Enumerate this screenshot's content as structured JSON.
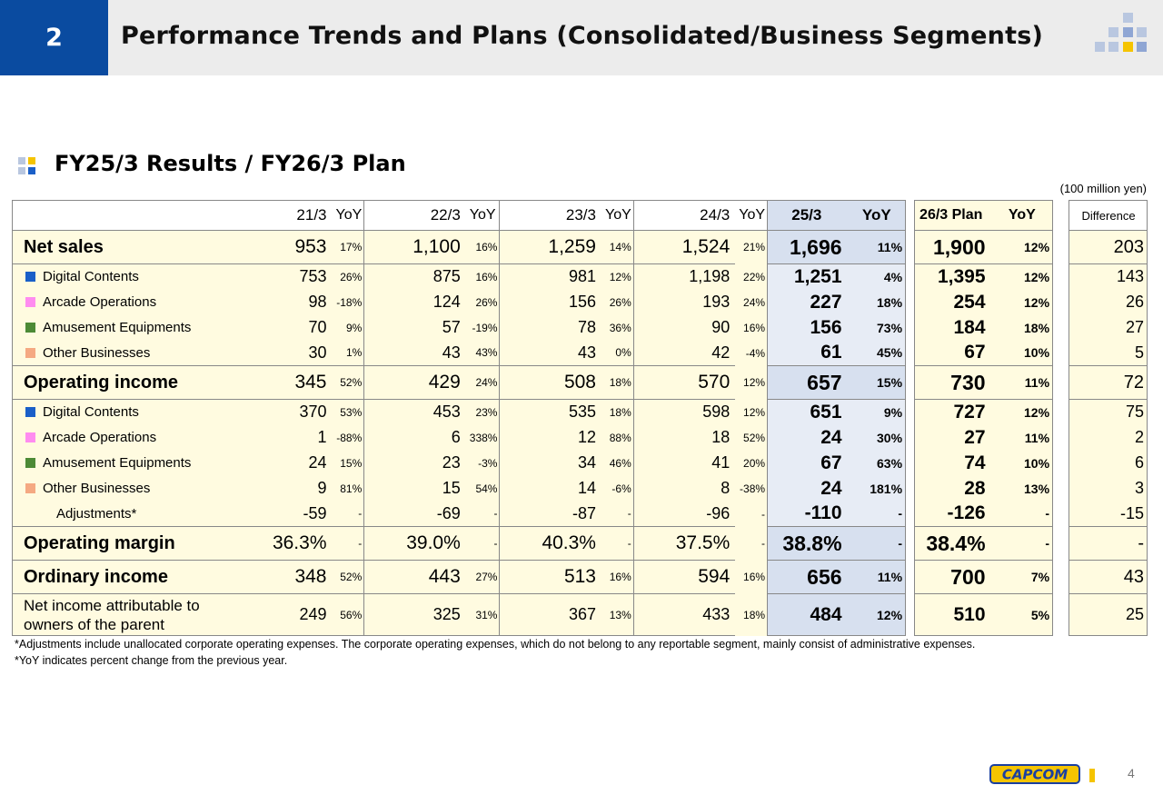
{
  "header": {
    "page_badge": "2",
    "title": "Performance Trends and Plans (Consolidated/Business Segments)"
  },
  "section": {
    "title": "FY25/3 Results / FY26/3 Plan",
    "unit": "(100 million yen)"
  },
  "table": {
    "columns": {
      "c1": "21/3",
      "c2": "22/3",
      "c3": "23/3",
      "c4": "24/3",
      "c5": "25/3",
      "c6": "26/3 Plan",
      "yoy": "YoY",
      "diff": "Difference"
    },
    "rows": [
      {
        "label": "Net sales",
        "v": [
          "953",
          "17%",
          "1,100",
          "16%",
          "1,259",
          "14%",
          "1,524",
          "21%",
          "1,696",
          "11%",
          "1,900",
          "12%",
          "203"
        ]
      },
      {
        "label": "Digital Contents",
        "v": [
          "753",
          "26%",
          "875",
          "16%",
          "981",
          "12%",
          "1,198",
          "22%",
          "1,251",
          "4%",
          "1,395",
          "12%",
          "143"
        ]
      },
      {
        "label": "Arcade Operations",
        "v": [
          "98",
          "-18%",
          "124",
          "26%",
          "156",
          "26%",
          "193",
          "24%",
          "227",
          "18%",
          "254",
          "12%",
          "26"
        ]
      },
      {
        "label": "Amusement Equipments",
        "v": [
          "70",
          "9%",
          "57",
          "-19%",
          "78",
          "36%",
          "90",
          "16%",
          "156",
          "73%",
          "184",
          "18%",
          "27"
        ]
      },
      {
        "label": "Other Businesses",
        "v": [
          "30",
          "1%",
          "43",
          "43%",
          "43",
          "0%",
          "42",
          "-4%",
          "61",
          "45%",
          "67",
          "10%",
          "5"
        ]
      },
      {
        "label": "Operating income",
        "v": [
          "345",
          "52%",
          "429",
          "24%",
          "508",
          "18%",
          "570",
          "12%",
          "657",
          "15%",
          "730",
          "11%",
          "72"
        ]
      },
      {
        "label": "Digital Contents",
        "v": [
          "370",
          "53%",
          "453",
          "23%",
          "535",
          "18%",
          "598",
          "12%",
          "651",
          "9%",
          "727",
          "12%",
          "75"
        ]
      },
      {
        "label": "Arcade Operations",
        "v": [
          "1",
          "-88%",
          "6",
          "338%",
          "12",
          "88%",
          "18",
          "52%",
          "24",
          "30%",
          "27",
          "11%",
          "2"
        ]
      },
      {
        "label": "Amusement Equipments",
        "v": [
          "24",
          "15%",
          "23",
          "-3%",
          "34",
          "46%",
          "41",
          "20%",
          "67",
          "63%",
          "74",
          "10%",
          "6"
        ]
      },
      {
        "label": "Other Businesses",
        "v": [
          "9",
          "81%",
          "15",
          "54%",
          "14",
          "-6%",
          "8",
          "-38%",
          "24",
          "181%",
          "28",
          "13%",
          "3"
        ]
      },
      {
        "label": "Adjustments*",
        "v": [
          "-59",
          "-",
          "-69",
          "-",
          "-87",
          "-",
          "-96",
          "-",
          "-110",
          "-",
          "-126",
          "-",
          "-15"
        ]
      },
      {
        "label": "Operating margin",
        "v": [
          "36.3%",
          "-",
          "39.0%",
          "-",
          "40.3%",
          "-",
          "37.5%",
          "-",
          "38.8%",
          "-",
          "38.4%",
          "-",
          "-"
        ]
      },
      {
        "label": "Ordinary income",
        "v": [
          "348",
          "52%",
          "443",
          "27%",
          "513",
          "16%",
          "594",
          "16%",
          "656",
          "11%",
          "700",
          "7%",
          "43"
        ]
      },
      {
        "label": "Net income attributable to owners of the parent",
        "v": [
          "249",
          "56%",
          "325",
          "31%",
          "367",
          "13%",
          "433",
          "18%",
          "484",
          "12%",
          "510",
          "5%",
          "25"
        ]
      }
    ]
  },
  "colors": {
    "digital": "#1a5fc8",
    "arcade": "#ff8cf0",
    "amusement": "#4d8a36",
    "other": "#f5a982"
  },
  "notes": {
    "n1": "*Adjustments include unallocated corporate operating expenses. The corporate operating expenses, which do not belong to any reportable segment, mainly consist of administrative expenses.",
    "n2": "*YoY indicates percent change from the previous year."
  },
  "footer": {
    "logo_icon": "capcom-logo-icon",
    "page_number": "4"
  }
}
